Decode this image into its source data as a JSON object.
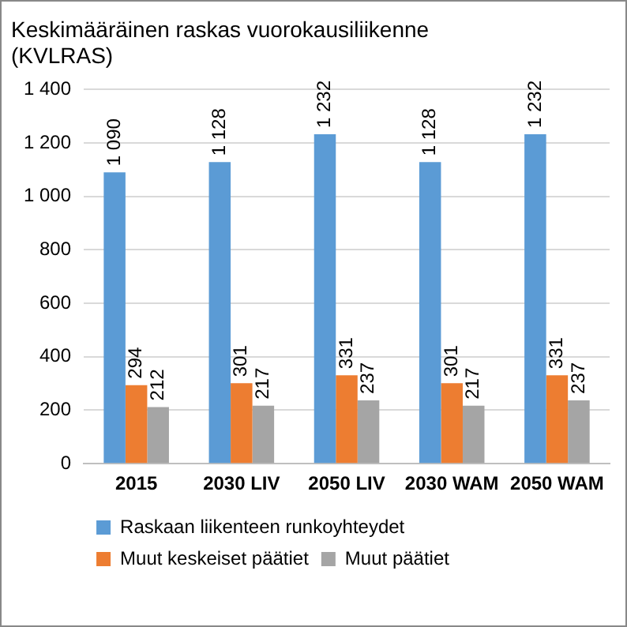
{
  "chart_data": {
    "type": "bar",
    "title": "Keskimääräinen raskas vuorokausiliikenne (KVLRAS)",
    "categories": [
      "2015",
      "2030 LIV",
      "2050 LIV",
      "2030 WAM",
      "2050 WAM"
    ],
    "series": [
      {
        "name": "Raskaan liikenteen runkoyhteydet",
        "color": "#5b9bd5",
        "values": [
          1090,
          1128,
          1232,
          1128,
          1232
        ],
        "value_labels": [
          "1 090",
          "1 128",
          "1 232",
          "1 128",
          "1 232"
        ]
      },
      {
        "name": "Muut keskeiset päätiet",
        "color": "#ed7d31",
        "values": [
          294,
          301,
          331,
          301,
          331
        ],
        "value_labels": [
          "294",
          "301",
          "331",
          "301",
          "331"
        ]
      },
      {
        "name": "Muut päätiet",
        "color": "#a5a5a5",
        "values": [
          212,
          217,
          237,
          217,
          237
        ],
        "value_labels": [
          "212",
          "217",
          "237",
          "217",
          "237"
        ]
      }
    ],
    "ylim": [
      0,
      1400
    ],
    "yticks": [
      0,
      200,
      400,
      600,
      800,
      {
        "value": 1000,
        "label": "1 000"
      },
      {
        "value": 1200,
        "label": "1 200"
      },
      {
        "value": 1400,
        "label": "1 400"
      }
    ],
    "grid": "y",
    "legend": "bottom"
  }
}
